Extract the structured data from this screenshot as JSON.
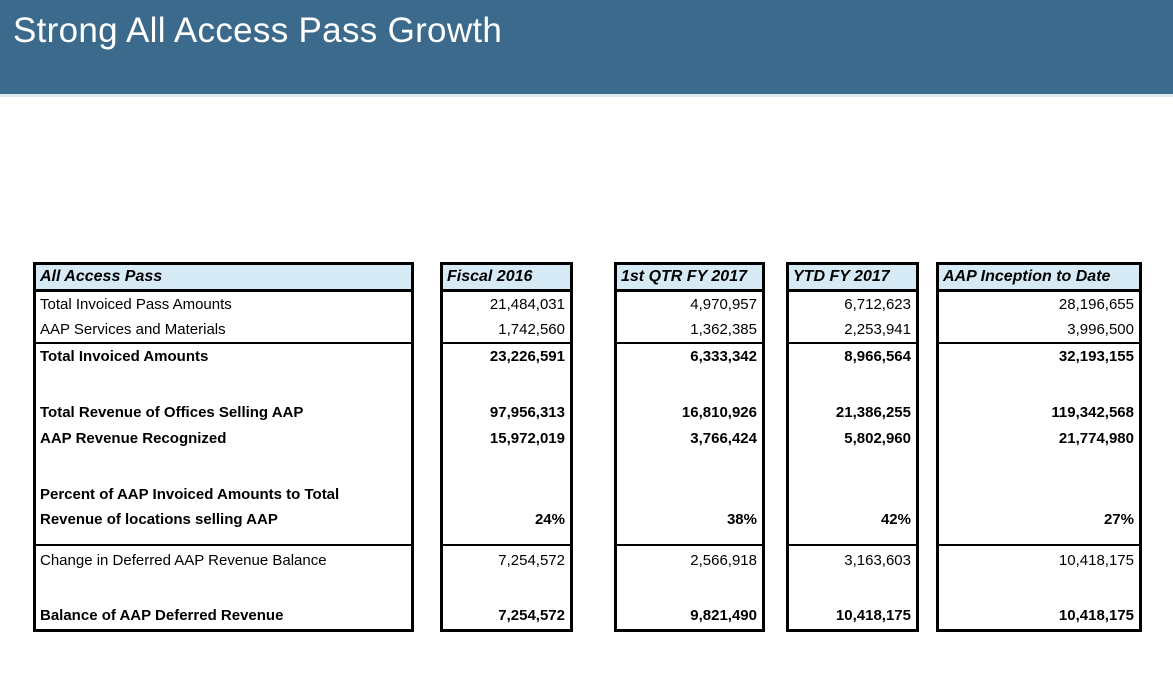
{
  "banner": {
    "title": "Strong All Access Pass Growth"
  },
  "colors": {
    "banner_background": "#3c6a8c",
    "banner_underline": "#dbe8f2",
    "header_cell_fill": "#d6eaf5",
    "border": "#000000",
    "title_text": "#ffffff"
  },
  "table": {
    "label_header": "All Access Pass",
    "column_headers": [
      "Fiscal 2016",
      "1st QTR FY 2017",
      "YTD FY 2017",
      "AAP Inception to Date"
    ],
    "rows": [
      {
        "label": "Total Invoiced Pass Amounts",
        "values": [
          "21,484,031",
          "4,970,957",
          "6,712,623",
          "28,196,655"
        ]
      },
      {
        "label": "AAP Services and Materials",
        "values": [
          "1,742,560",
          "1,362,385",
          "2,253,941",
          "3,996,500"
        ]
      },
      {
        "label": "Total Invoiced Amounts",
        "values": [
          "23,226,591",
          "6,333,342",
          "8,966,564",
          "32,193,155"
        ]
      },
      {
        "label": "Total Revenue of Offices Selling AAP",
        "values": [
          "97,956,313",
          "16,810,926",
          "21,386,255",
          "119,342,568"
        ]
      },
      {
        "label": "AAP Revenue Recognized",
        "values": [
          "15,972,019",
          "3,766,424",
          "5,802,960",
          "21,774,980"
        ]
      },
      {
        "label_line1": "Percent of AAP Invoiced Amounts to Total",
        "label_line2": "Revenue of locations selling AAP",
        "values": [
          "24%",
          "38%",
          "42%",
          "27%"
        ]
      },
      {
        "label": "Change in Deferred AAP Revenue Balance",
        "values": [
          "7,254,572",
          "2,566,918",
          "3,163,603",
          "10,418,175"
        ]
      },
      {
        "label": "Balance of AAP Deferred Revenue",
        "values": [
          "7,254,572",
          "9,821,490",
          "10,418,175",
          "10,418,175"
        ]
      }
    ]
  }
}
